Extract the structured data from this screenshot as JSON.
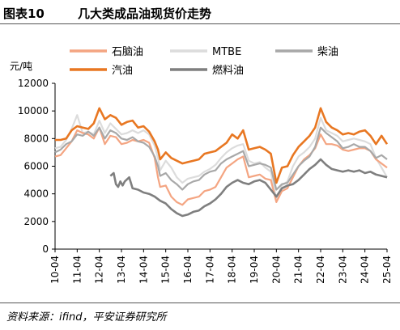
{
  "header": {
    "figure_no": "图表10",
    "title": "几大类成品油现货价走势"
  },
  "footer": {
    "source": "资料来源：ifind，平安证券研究所"
  },
  "chart_data": {
    "type": "line",
    "unit_label": "元/吨",
    "ylim": [
      0,
      12000
    ],
    "yticks": [
      0,
      2000,
      4000,
      6000,
      8000,
      10000,
      12000
    ],
    "xticks": [
      "10-04",
      "11-04",
      "12-04",
      "13-04",
      "14-04",
      "15-04",
      "16-04",
      "17-04",
      "18-04",
      "19-04",
      "20-04",
      "21-04",
      "22-04",
      "23-04",
      "24-04",
      "25-04"
    ],
    "xlim": [
      2010.25,
      2025.25
    ],
    "legend_order": [
      0,
      1,
      2,
      3,
      4
    ],
    "series": [
      {
        "name": "石脑油",
        "color": "#f4a582",
        "width": 2.2,
        "x": [
          2010.25,
          2010.5,
          2010.75,
          2011.0,
          2011.25,
          2011.5,
          2011.75,
          2012.0,
          2012.25,
          2012.5,
          2012.75,
          2013.0,
          2013.25,
          2013.5,
          2013.75,
          2014.0,
          2014.25,
          2014.5,
          2014.75,
          2014.9,
          2015.0,
          2015.25,
          2015.5,
          2015.75,
          2016.0,
          2016.25,
          2016.5,
          2016.75,
          2017.0,
          2017.25,
          2017.5,
          2017.75,
          2018.0,
          2018.25,
          2018.5,
          2018.75,
          2019.0,
          2019.25,
          2019.5,
          2019.75,
          2020.0,
          2020.25,
          2020.5,
          2020.75,
          2021.0,
          2021.25,
          2021.5,
          2021.75,
          2022.0,
          2022.25,
          2022.5,
          2022.75,
          2023.0,
          2023.25,
          2023.5,
          2023.75,
          2024.0,
          2024.25,
          2024.5,
          2024.75,
          2025.0,
          2025.25
        ],
        "y": [
          6700,
          6800,
          7300,
          7800,
          8600,
          8400,
          8300,
          8000,
          8800,
          7600,
          8200,
          8100,
          7600,
          7700,
          7900,
          7800,
          7900,
          7700,
          6600,
          5200,
          4500,
          4600,
          3800,
          3400,
          3200,
          3600,
          3700,
          3800,
          4200,
          4300,
          4500,
          5200,
          5900,
          6200,
          6500,
          6700,
          5200,
          5300,
          5400,
          5100,
          5000,
          3400,
          4200,
          4400,
          5200,
          6000,
          6500,
          6800,
          7300,
          8300,
          7600,
          7600,
          7500,
          7200,
          7100,
          7200,
          7300,
          7300,
          7100,
          6500,
          6200,
          5900
        ]
      },
      {
        "name": "MTBE",
        "color": "#dcdcdc",
        "width": 2.2,
        "x": [
          2010.25,
          2010.5,
          2010.75,
          2011.0,
          2011.25,
          2011.5,
          2011.75,
          2012.0,
          2012.25,
          2012.5,
          2012.75,
          2013.0,
          2013.25,
          2013.5,
          2013.75,
          2014.0,
          2014.25,
          2014.5,
          2014.75,
          2014.9,
          2015.0,
          2015.25,
          2015.5,
          2015.75,
          2016.0,
          2016.25,
          2016.5,
          2016.75,
          2017.0,
          2017.25,
          2017.5,
          2017.75,
          2018.0,
          2018.25,
          2018.5,
          2018.75,
          2019.0,
          2019.25,
          2019.5,
          2019.75,
          2020.0,
          2020.25,
          2020.5,
          2020.75,
          2021.0,
          2021.25,
          2021.5,
          2021.75,
          2022.0,
          2022.25,
          2022.5,
          2022.75,
          2023.0,
          2023.25,
          2023.5,
          2023.75,
          2024.0,
          2024.25,
          2024.5,
          2024.75,
          2025.0,
          2025.25
        ],
        "y": [
          7300,
          7400,
          7900,
          8700,
          9700,
          8400,
          8500,
          8300,
          9300,
          8400,
          9100,
          8700,
          8300,
          8400,
          8600,
          8400,
          8600,
          8300,
          7500,
          6600,
          5700,
          6400,
          5900,
          5200,
          4800,
          5100,
          5200,
          5300,
          5600,
          5800,
          6100,
          6600,
          7000,
          7300,
          7500,
          7600,
          6400,
          6200,
          6300,
          5900,
          5600,
          3600,
          4600,
          4900,
          6000,
          6700,
          7000,
          7400,
          8000,
          9500,
          8600,
          8400,
          8200,
          7800,
          7900,
          8000,
          7900,
          7800,
          7600,
          6600,
          5900,
          5200
        ]
      },
      {
        "name": "柴油",
        "color": "#a8a8a8",
        "width": 2.2,
        "x": [
          2010.25,
          2010.5,
          2010.75,
          2011.0,
          2011.25,
          2011.5,
          2011.75,
          2012.0,
          2012.25,
          2012.5,
          2012.75,
          2013.0,
          2013.25,
          2013.5,
          2013.75,
          2014.0,
          2014.25,
          2014.5,
          2014.75,
          2014.9,
          2015.0,
          2015.25,
          2015.5,
          2015.75,
          2016.0,
          2016.25,
          2016.5,
          2016.75,
          2017.0,
          2017.25,
          2017.5,
          2017.75,
          2018.0,
          2018.25,
          2018.5,
          2018.75,
          2019.0,
          2019.25,
          2019.5,
          2019.75,
          2020.0,
          2020.25,
          2020.5,
          2020.75,
          2021.0,
          2021.25,
          2021.5,
          2021.75,
          2022.0,
          2022.25,
          2022.5,
          2022.75,
          2023.0,
          2023.25,
          2023.5,
          2023.75,
          2024.0,
          2024.25,
          2024.5,
          2024.75,
          2025.0,
          2025.25
        ],
        "y": [
          7000,
          7200,
          7600,
          7800,
          8300,
          8200,
          8500,
          8200,
          8800,
          8000,
          8600,
          8400,
          8000,
          7900,
          8100,
          7800,
          7700,
          7400,
          6700,
          6000,
          5300,
          5500,
          5000,
          4700,
          4300,
          4700,
          4900,
          5000,
          5400,
          5600,
          5700,
          6200,
          6500,
          6700,
          6900,
          7100,
          6000,
          6100,
          6200,
          6100,
          5900,
          4300,
          4700,
          4800,
          5400,
          6000,
          6400,
          6700,
          7400,
          8800,
          8400,
          8100,
          7800,
          7300,
          7400,
          7600,
          7400,
          7400,
          7100,
          6600,
          6800,
          6500
        ]
      },
      {
        "name": "汽油",
        "color": "#e87722",
        "width": 2.6,
        "x": [
          2010.25,
          2010.5,
          2010.75,
          2011.0,
          2011.25,
          2011.5,
          2011.75,
          2012.0,
          2012.25,
          2012.5,
          2012.75,
          2013.0,
          2013.25,
          2013.5,
          2013.75,
          2014.0,
          2014.25,
          2014.5,
          2014.75,
          2014.9,
          2015.0,
          2015.25,
          2015.5,
          2015.75,
          2016.0,
          2016.25,
          2016.5,
          2016.75,
          2017.0,
          2017.25,
          2017.5,
          2017.75,
          2018.0,
          2018.25,
          2018.5,
          2018.75,
          2019.0,
          2019.25,
          2019.5,
          2019.75,
          2020.0,
          2020.25,
          2020.5,
          2020.75,
          2021.0,
          2021.25,
          2021.5,
          2021.75,
          2022.0,
          2022.25,
          2022.5,
          2022.75,
          2023.0,
          2023.25,
          2023.5,
          2023.75,
          2024.0,
          2024.25,
          2024.5,
          2024.75,
          2025.0,
          2025.25
        ],
        "y": [
          7900,
          7900,
          8000,
          8600,
          8900,
          8800,
          8700,
          9100,
          10200,
          9400,
          9700,
          9500,
          9000,
          9200,
          9300,
          8800,
          8900,
          8500,
          7800,
          7200,
          6500,
          7000,
          6600,
          6400,
          6200,
          6300,
          6400,
          6500,
          6900,
          7000,
          7100,
          7400,
          7700,
          8300,
          8000,
          8600,
          7200,
          7300,
          7400,
          7200,
          6900,
          4800,
          5900,
          6000,
          6800,
          7400,
          7800,
          8200,
          8800,
          10200,
          9200,
          8800,
          8600,
          8300,
          8400,
          8300,
          8500,
          8600,
          8200,
          7600,
          8200,
          7600
        ]
      },
      {
        "name": "燃料油",
        "color": "#7f7f7f",
        "width": 2.6,
        "x": [
          2012.75,
          2012.9,
          2013.0,
          2013.1,
          2013.2,
          2013.3,
          2013.4,
          2013.6,
          2013.75,
          2014.0,
          2014.25,
          2014.5,
          2014.75,
          2015.0,
          2015.25,
          2015.5,
          2015.75,
          2016.0,
          2016.25,
          2016.5,
          2016.75,
          2017.0,
          2017.25,
          2017.5,
          2017.75,
          2018.0,
          2018.25,
          2018.5,
          2018.75,
          2019.0,
          2019.25,
          2019.5,
          2019.75,
          2020.0,
          2020.25,
          2020.5,
          2020.75,
          2021.0,
          2021.25,
          2021.5,
          2021.75,
          2022.0,
          2022.25,
          2022.5,
          2022.75,
          2023.0,
          2023.25,
          2023.5,
          2023.75,
          2024.0,
          2024.25,
          2024.5,
          2024.75,
          2025.0,
          2025.25
        ],
        "y": [
          5300,
          5500,
          4700,
          4500,
          4900,
          4600,
          4900,
          5200,
          4400,
          4300,
          4100,
          4000,
          3800,
          3500,
          3300,
          2900,
          2600,
          2400,
          2500,
          2700,
          2800,
          3100,
          3300,
          3600,
          4000,
          4500,
          4800,
          5000,
          4800,
          4700,
          4900,
          5000,
          4800,
          4300,
          3800,
          4400,
          4600,
          4700,
          5000,
          5400,
          5800,
          6100,
          6500,
          6100,
          5800,
          5700,
          5600,
          5700,
          5600,
          5700,
          5500,
          5600,
          5400,
          5300,
          5200
        ]
      }
    ]
  }
}
